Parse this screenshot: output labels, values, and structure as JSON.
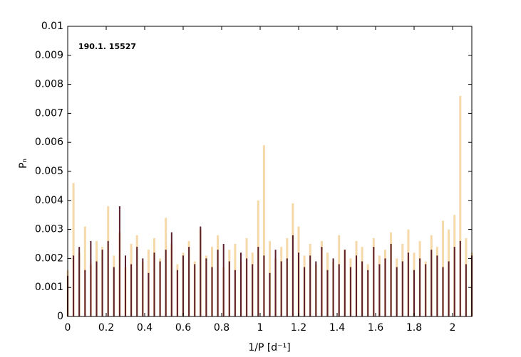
{
  "chart_data": {
    "type": "stem",
    "annotation": "190.1. 15527",
    "xlabel": "1/P  [d⁻¹]",
    "ylabel": "Pₙ",
    "x": [
      0,
      0.03,
      0.06,
      0.09,
      0.12,
      0.15,
      0.18,
      0.21,
      0.24,
      0.27,
      0.3,
      0.33,
      0.36,
      0.39,
      0.42,
      0.45,
      0.48,
      0.51,
      0.54,
      0.57,
      0.6,
      0.63,
      0.66,
      0.69,
      0.72,
      0.75,
      0.78,
      0.81,
      0.84,
      0.87,
      0.9,
      0.93,
      0.96,
      0.99,
      1.02,
      1.05,
      1.08,
      1.11,
      1.14,
      1.17,
      1.2,
      1.23,
      1.26,
      1.29,
      1.32,
      1.35,
      1.38,
      1.41,
      1.44,
      1.47,
      1.5,
      1.53,
      1.56,
      1.59,
      1.62,
      1.65,
      1.68,
      1.71,
      1.74,
      1.77,
      1.8,
      1.83,
      1.86,
      1.89,
      1.92,
      1.95,
      1.98,
      2.01,
      2.04,
      2.07,
      2.1
    ],
    "series": [
      {
        "color": "#f6d9a9",
        "values": [
          0.0016,
          0.0046,
          0.0022,
          0.0031,
          0.0018,
          0.0026,
          0.0024,
          0.0038,
          0.0021,
          0.0029,
          0.0017,
          0.0025,
          0.0028,
          0.0019,
          0.0023,
          0.0027,
          0.002,
          0.0034,
          0.0025,
          0.0018,
          0.0022,
          0.0026,
          0.0019,
          0.003,
          0.0021,
          0.0024,
          0.0028,
          0.0017,
          0.0023,
          0.0025,
          0.0019,
          0.0027,
          0.0022,
          0.004,
          0.0059,
          0.0026,
          0.002,
          0.0024,
          0.0027,
          0.0039,
          0.0031,
          0.0021,
          0.0025,
          0.0018,
          0.0026,
          0.0022,
          0.0019,
          0.0028,
          0.0023,
          0.002,
          0.0026,
          0.0024,
          0.0018,
          0.0027,
          0.0021,
          0.0023,
          0.0029,
          0.002,
          0.0025,
          0.003,
          0.0022,
          0.0026,
          0.0019,
          0.0028,
          0.0024,
          0.0033,
          0.003,
          0.0035,
          0.0076,
          0.0027,
          0.0022
        ]
      },
      {
        "color": "#5c1f2c",
        "values": [
          0.0014,
          0.0021,
          0.0024,
          0.0016,
          0.0026,
          0.0019,
          0.0023,
          0.0026,
          0.0017,
          0.0038,
          0.0021,
          0.0018,
          0.0024,
          0.002,
          0.0015,
          0.0022,
          0.0019,
          0.0023,
          0.0029,
          0.0016,
          0.0021,
          0.0024,
          0.0018,
          0.0031,
          0.002,
          0.0017,
          0.0023,
          0.0025,
          0.0019,
          0.0016,
          0.0022,
          0.002,
          0.0018,
          0.0024,
          0.0021,
          0.0015,
          0.0023,
          0.0019,
          0.002,
          0.0028,
          0.0022,
          0.0017,
          0.0021,
          0.0019,
          0.0024,
          0.0016,
          0.002,
          0.0018,
          0.0023,
          0.0017,
          0.0021,
          0.0019,
          0.0016,
          0.0024,
          0.0018,
          0.002,
          0.0025,
          0.0017,
          0.0019,
          0.0022,
          0.0016,
          0.002,
          0.0018,
          0.0023,
          0.0021,
          0.0017,
          0.0019,
          0.0024,
          0.0026,
          0.0018,
          0.0021
        ]
      }
    ],
    "xlim": [
      0,
      2.1
    ],
    "ylim": [
      0,
      0.01
    ],
    "xticks": [
      0,
      0.2,
      0.4,
      0.6,
      0.8,
      1,
      1.2,
      1.4,
      1.6,
      1.8,
      2
    ],
    "yticks": [
      0,
      0.001,
      0.002,
      0.003,
      0.004,
      0.005,
      0.006,
      0.007,
      0.008,
      0.009,
      0.01
    ],
    "grid": false
  }
}
